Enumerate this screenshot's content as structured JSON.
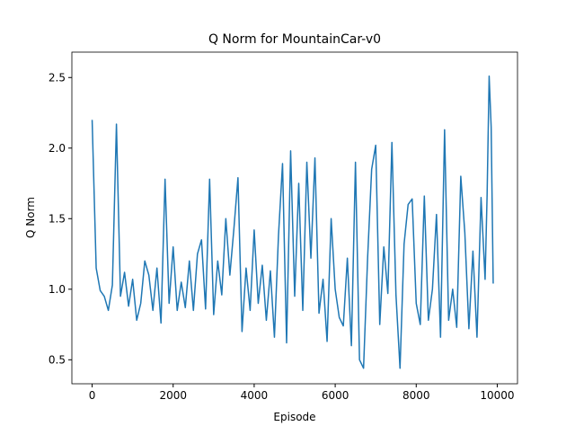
{
  "chart_data": {
    "type": "line",
    "title": "Q Norm for MountainCar-v0",
    "xlabel": "Episode",
    "ylabel": "Q Norm",
    "color": "#1f77b4",
    "x": [
      0,
      100,
      200,
      300,
      400,
      500,
      600,
      700,
      800,
      900,
      1000,
      1100,
      1200,
      1300,
      1400,
      1500,
      1600,
      1700,
      1800,
      1900,
      2000,
      2100,
      2200,
      2300,
      2400,
      2500,
      2600,
      2700,
      2800,
      2900,
      3000,
      3100,
      3200,
      3300,
      3400,
      3500,
      3600,
      3700,
      3800,
      3900,
      4000,
      4100,
      4200,
      4300,
      4400,
      4500,
      4600,
      4700,
      4800,
      4900,
      5000,
      5100,
      5200,
      5300,
      5400,
      5500,
      5600,
      5700,
      5800,
      5900,
      6000,
      6100,
      6200,
      6300,
      6400,
      6500,
      6600,
      6700,
      6800,
      6900,
      7000,
      7100,
      7200,
      7300,
      7400,
      7500,
      7600,
      7700,
      7800,
      7900,
      8000,
      8100,
      8200,
      8300,
      8400,
      8500,
      8600,
      8700,
      8800,
      8900,
      9000,
      9100,
      9200,
      9300,
      9400,
      9500,
      9600,
      9700,
      9750,
      9800,
      9850,
      9900
    ],
    "values": [
      2.2,
      1.15,
      0.99,
      0.95,
      0.85,
      1.03,
      2.17,
      0.95,
      1.12,
      0.88,
      1.07,
      0.78,
      0.9,
      1.2,
      1.1,
      0.85,
      1.15,
      0.76,
      1.78,
      0.9,
      1.3,
      0.85,
      1.05,
      0.87,
      1.2,
      0.85,
      1.25,
      1.35,
      0.86,
      1.78,
      0.82,
      1.2,
      0.96,
      1.5,
      1.1,
      1.43,
      1.79,
      0.7,
      1.15,
      0.85,
      1.42,
      0.9,
      1.17,
      0.78,
      1.13,
      0.66,
      1.38,
      1.89,
      0.62,
      1.98,
      0.95,
      1.75,
      0.85,
      1.9,
      1.22,
      1.93,
      0.83,
      1.07,
      0.63,
      1.5,
      1.0,
      0.8,
      0.74,
      1.22,
      0.6,
      1.9,
      0.5,
      0.44,
      1.22,
      1.85,
      2.02,
      0.75,
      1.3,
      0.97,
      2.04,
      0.96,
      0.44,
      1.32,
      1.6,
      1.64,
      0.9,
      0.75,
      1.66,
      0.78,
      1.0,
      1.53,
      0.66,
      2.13,
      0.78,
      1.0,
      0.73,
      1.8,
      1.4,
      0.72,
      1.27,
      0.66,
      1.65,
      1.07,
      1.67,
      2.51,
      2.15,
      1.04
    ],
    "xlim": [
      -500,
      10500
    ],
    "ylim": [
      0.33,
      2.68
    ],
    "xticks": [
      0,
      2000,
      4000,
      6000,
      8000,
      10000
    ],
    "yticks": [
      0.5,
      {
        "value": 1,
        "label": "1.0"
      },
      1.5,
      {
        "value": 2,
        "label": "2.0"
      },
      2.5
    ]
  }
}
